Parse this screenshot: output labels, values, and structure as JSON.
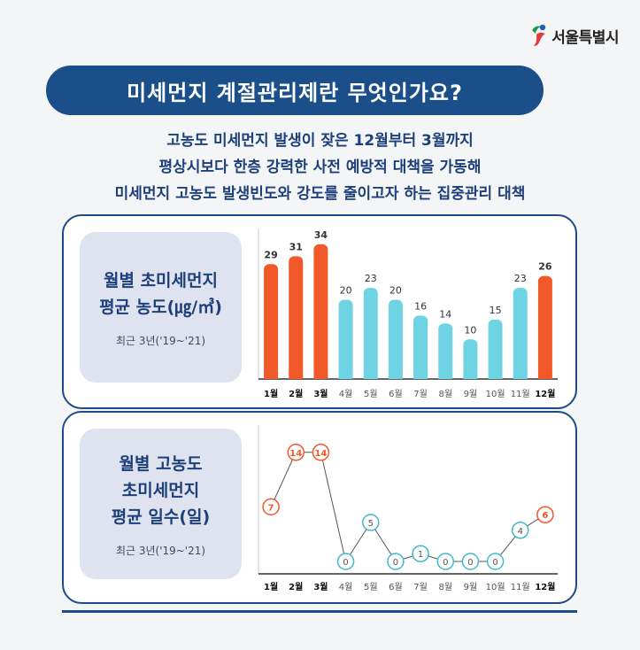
{
  "brand": {
    "name": "서울특별시"
  },
  "banner": {
    "title": "미세먼지 계절관리제란 무엇인가요?"
  },
  "intro": {
    "lines": [
      "고농도 미세먼지 발생이 잦은 12월부터 3월까지",
      "평상시보다 한층 강력한 사전 예방적 대책을 가동해",
      "미세먼지 고농도 발생빈도와 강도를 줄이고자 하는 집중관리 대책"
    ]
  },
  "card1": {
    "title_line1": "월별 초미세먼지",
    "title_line2": "평균 농도(㎍/㎥)",
    "subtitle": "최근 3년('19~'21)"
  },
  "card2": {
    "title_line1": "월별 고농도",
    "title_line2": "초미세먼지",
    "title_line3": "평균 일수(일)",
    "subtitle": "최근 3년('19~'21)"
  },
  "colors": {
    "highlight": "#f2592a",
    "normal": "#6ed3e3",
    "navy": "#1d4b8a"
  },
  "chart_data": [
    {
      "type": "bar",
      "title": "월별 초미세먼지 평균 농도(㎍/㎥)",
      "categories": [
        "1월",
        "2월",
        "3월",
        "4월",
        "5월",
        "6월",
        "7월",
        "8월",
        "9월",
        "10월",
        "11월",
        "12월"
      ],
      "values": [
        29,
        31,
        34,
        20,
        23,
        20,
        16,
        14,
        10,
        15,
        23,
        26
      ],
      "highlight": [
        true,
        true,
        true,
        false,
        false,
        false,
        false,
        false,
        false,
        false,
        false,
        true
      ],
      "ylim": [
        0,
        38
      ],
      "grid": false
    },
    {
      "type": "line",
      "title": "월별 고농도 초미세먼지 평균 일수(일)",
      "categories": [
        "1월",
        "2월",
        "3월",
        "4월",
        "5월",
        "6월",
        "7월",
        "8월",
        "9월",
        "10월",
        "11월",
        "12월"
      ],
      "values": [
        7,
        14,
        14,
        0,
        5,
        0,
        1,
        0,
        0,
        0,
        4,
        6
      ],
      "highlight": [
        true,
        true,
        true,
        false,
        false,
        false,
        false,
        false,
        false,
        false,
        false,
        true
      ],
      "ylim": [
        0,
        15
      ],
      "grid": false
    }
  ]
}
